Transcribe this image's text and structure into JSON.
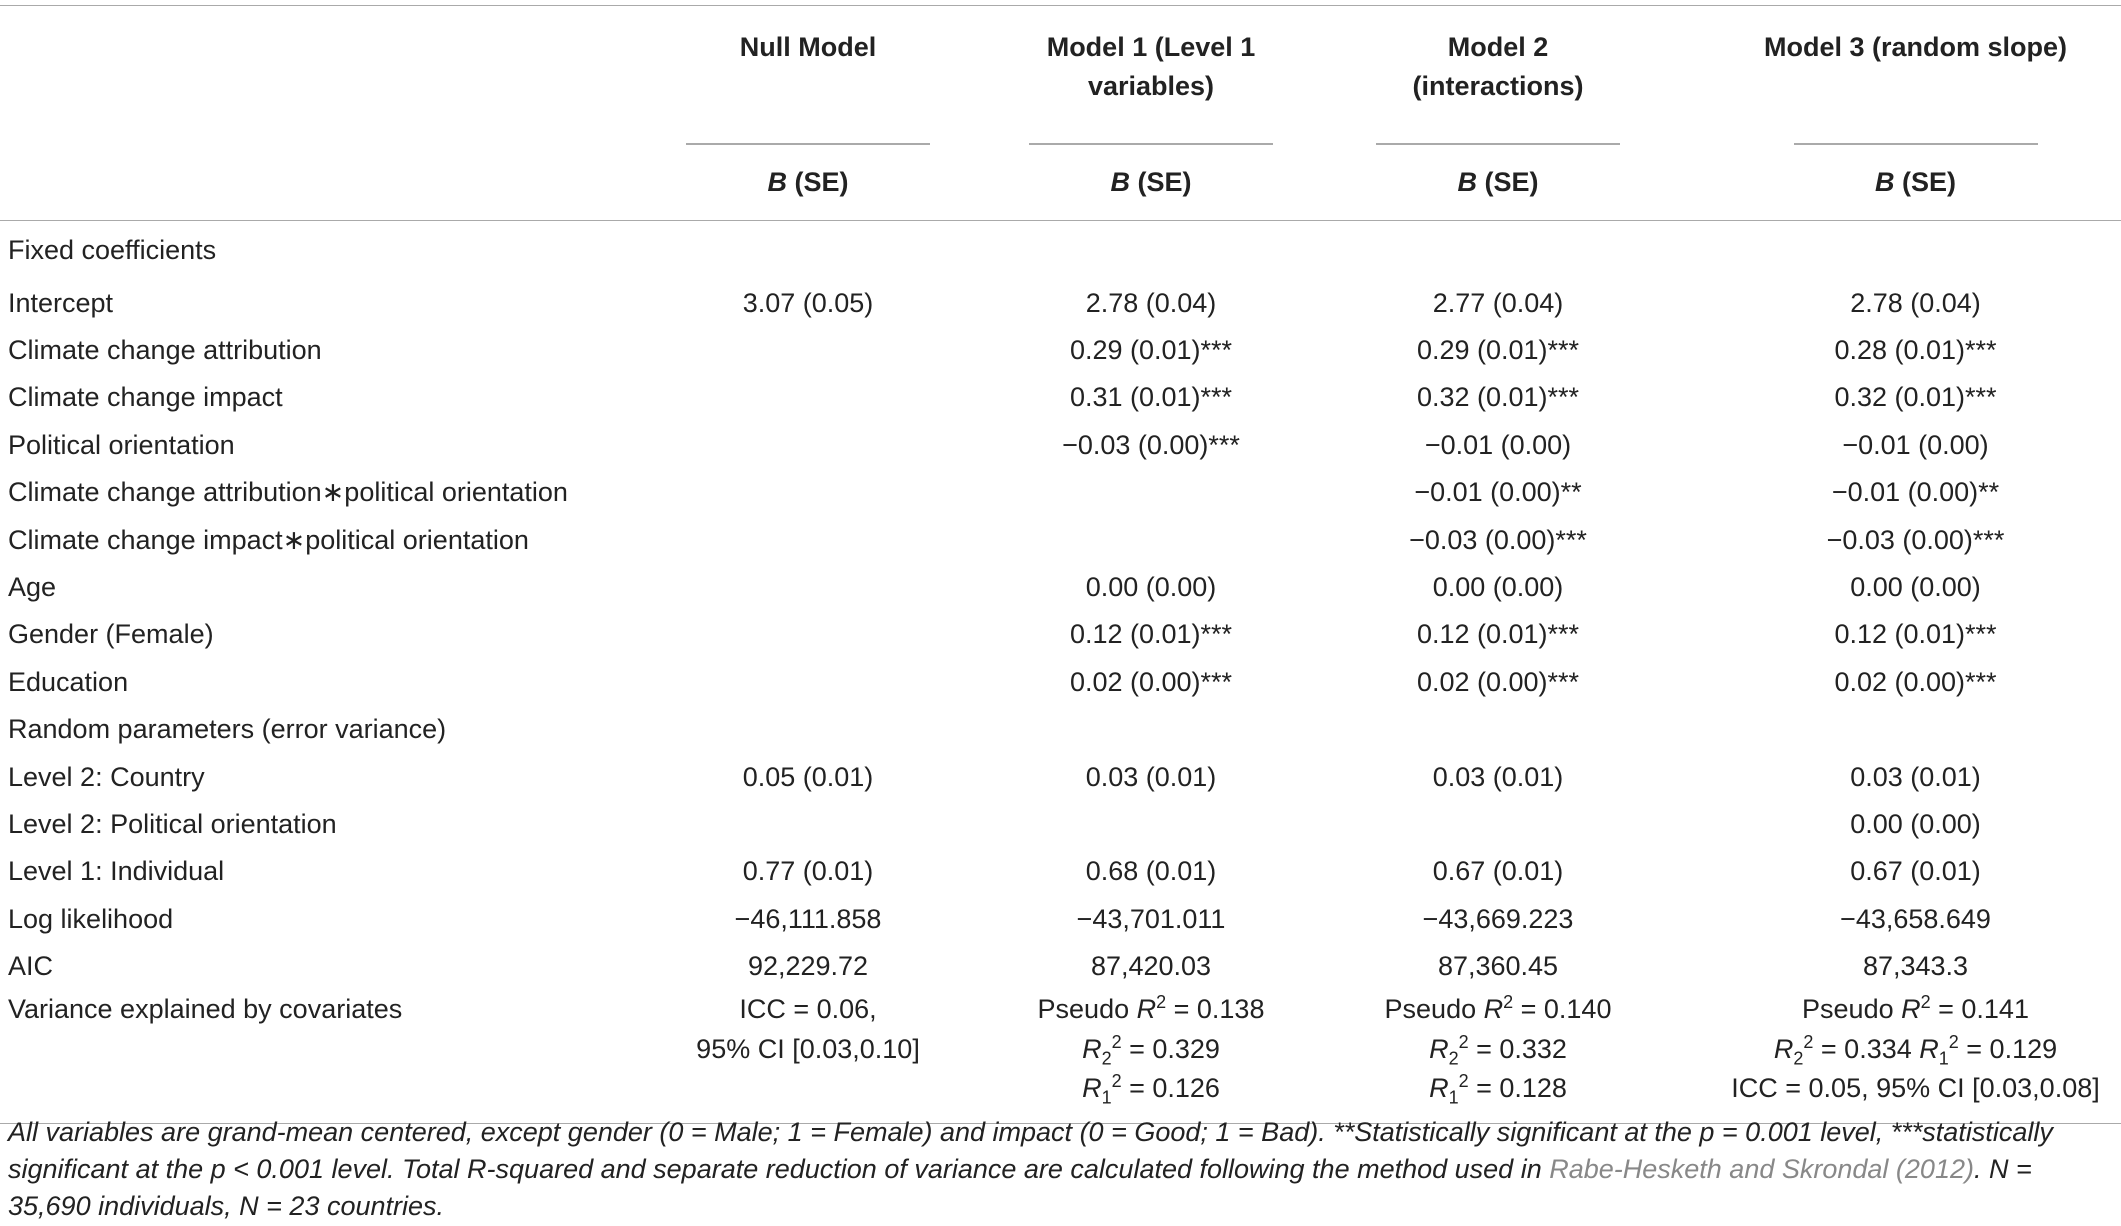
{
  "table": {
    "columns": [
      {
        "name": "Null Model",
        "stat": [
          {
            "i": "B"
          },
          " (SE)"
        ]
      },
      {
        "name": "Model 1 (Level 1 variables)",
        "stat": [
          {
            "i": "B"
          },
          " (SE)"
        ]
      },
      {
        "name": "Model 2 (interactions)",
        "stat": [
          {
            "i": "B"
          },
          " (SE)"
        ]
      },
      {
        "name": "Model 3 (random slope)",
        "stat": [
          {
            "i": "B"
          },
          " (SE)"
        ]
      }
    ],
    "rows": [
      {
        "label": "Fixed coefficients"
      },
      {
        "label": "Intercept",
        "cells": [
          "3.07 (0.05)",
          "2.78 (0.04)",
          "2.77 (0.04)",
          "2.78 (0.04)"
        ]
      },
      {
        "label": "Climate change attribution",
        "cells": [
          null,
          "0.29 (0.01)***",
          "0.29 (0.01)***",
          "0.28 (0.01)***"
        ]
      },
      {
        "label": "Climate change impact",
        "cells": [
          null,
          "0.31 (0.01)***",
          "0.32 (0.01)***",
          "0.32 (0.01)***"
        ]
      },
      {
        "label": "Political orientation",
        "cells": [
          null,
          "−0.03 (0.00)***",
          "−0.01 (0.00)",
          "−0.01 (0.00)"
        ]
      },
      {
        "label": "Climate change attribution∗political orientation",
        "cells": [
          null,
          null,
          "−0.01 (0.00)**",
          "−0.01 (0.00)**"
        ]
      },
      {
        "label": "Climate change impact∗political orientation",
        "cells": [
          null,
          null,
          "−0.03 (0.00)***",
          "−0.03 (0.00)***"
        ]
      },
      {
        "label": "Age",
        "cells": [
          null,
          "0.00 (0.00)",
          "0.00 (0.00)",
          "0.00 (0.00)"
        ]
      },
      {
        "label": "Gender (Female)",
        "cells": [
          null,
          "0.12 (0.01)***",
          "0.12 (0.01)***",
          "0.12 (0.01)***"
        ]
      },
      {
        "label": "Education",
        "cells": [
          null,
          "0.02 (0.00)***",
          "0.02 (0.00)***",
          "0.02 (0.00)***"
        ]
      },
      {
        "label": "Random parameters (error variance)"
      },
      {
        "label": "Level 2: Country",
        "cells": [
          "0.05 (0.01)",
          "0.03 (0.01)",
          "0.03 (0.01)",
          "0.03 (0.01)"
        ]
      },
      {
        "label": "Level 2: Political orientation",
        "cells": [
          null,
          null,
          null,
          "0.00 (0.00)"
        ]
      },
      {
        "label": "Level 1: Individual",
        "cells": [
          "0.77 (0.01)",
          "0.68 (0.01)",
          "0.67 (0.01)",
          "0.67 (0.01)"
        ]
      },
      {
        "label": "Log likelihood",
        "cells": [
          "−46,111.858",
          "−43,701.011",
          "−43,669.223",
          "−43,658.649"
        ]
      },
      {
        "label": "AIC",
        "cells": [
          "92,229.72",
          "87,420.03",
          "87,360.45",
          "87,343.3"
        ]
      },
      {
        "label": "Variance explained by covariates",
        "cells": [
          [
            [
              "ICC = 0.06,"
            ],
            [
              "95% CI [0.03,0.10]"
            ]
          ],
          [
            [
              "Pseudo ",
              {
                "i": "R"
              },
              {
                "sup": "2"
              },
              " = 0.138"
            ],
            [
              {
                "i": "R"
              },
              {
                "sub": "2"
              },
              {
                "sup": "2"
              },
              " = 0.329"
            ],
            [
              {
                "i": "R"
              },
              {
                "sub": "1"
              },
              {
                "sup": "2"
              },
              " = 0.126"
            ]
          ],
          [
            [
              "Pseudo ",
              {
                "i": "R"
              },
              {
                "sup": "2"
              },
              " = 0.140"
            ],
            [
              {
                "i": "R"
              },
              {
                "sub": "2"
              },
              {
                "sup": "2"
              },
              " = 0.332"
            ],
            [
              {
                "i": "R"
              },
              {
                "sub": "1"
              },
              {
                "sup": "2"
              },
              " = 0.128"
            ]
          ],
          [
            [
              "Pseudo ",
              {
                "i": "R"
              },
              {
                "sup": "2"
              },
              " = 0.141"
            ],
            [
              {
                "i": "R"
              },
              {
                "sub": "2"
              },
              {
                "sup": "2"
              },
              " = 0.334 ",
              {
                "i": "R"
              },
              {
                "sub": "1"
              },
              {
                "sup": "2"
              },
              " = 0.129"
            ],
            [
              "ICC = 0.05, 95% CI [0.03,0.08]"
            ]
          ]
        ]
      }
    ],
    "footnote": [
      "All variables are grand-mean centered, except gender (0 = Male; 1 = Female) and impact (0 = Good; 1 = Bad). **Statistically significant at the p = 0.001 level, ***statistically significant at the p < 0.001 level. Total R-squared and separate reduction of variance are calculated following the method used in ",
      {
        "link": "Rabe-Hesketh and Skrondal (2012)"
      },
      ". N = 35,690 individuals, N = 23 countries."
    ]
  }
}
